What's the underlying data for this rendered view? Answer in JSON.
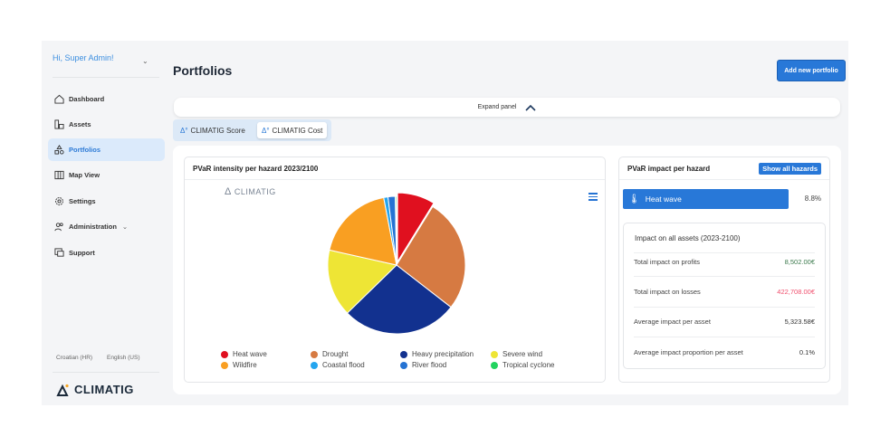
{
  "sidebar": {
    "greeting": "Hi, Super Admin!",
    "items": [
      {
        "label": "Dashboard",
        "icon": "home-icon"
      },
      {
        "label": "Assets",
        "icon": "assets-icon"
      },
      {
        "label": "Portfolios",
        "icon": "portfolios-icon",
        "active": true
      },
      {
        "label": "Map View",
        "icon": "map-icon"
      },
      {
        "label": "Settings",
        "icon": "gear-icon"
      },
      {
        "label": "Administration",
        "icon": "users-icon"
      },
      {
        "label": "Support",
        "icon": "support-icon"
      }
    ],
    "languages": [
      "Croatian (HR)",
      "English (US)"
    ],
    "logo": "CLIMATIG"
  },
  "header": {
    "title": "Portfolios",
    "add_button": "Add new portfolio",
    "expand_label": "Expand panel"
  },
  "tabs": [
    {
      "label": "CLIMATIG Score"
    },
    {
      "label": "CLIMATIG Cost",
      "selected": true
    }
  ],
  "pie_card": {
    "title": "PVaR intensity per hazard 2023/2100",
    "watermark": "CLIMATIG"
  },
  "chart_data": {
    "type": "pie",
    "title": "",
    "categories": [
      "Heat wave",
      "Drought",
      "Heavy precipitation",
      "Severe wind",
      "Wildfire",
      "Coastal flood",
      "River flood",
      "Tropical cyclone"
    ],
    "values": [
      8.8,
      26.7,
      27.2,
      15.8,
      18.5,
      1.0,
      1.7,
      0.3
    ],
    "colors": [
      "#e0101f",
      "#d67a42",
      "#12318f",
      "#eee535",
      "#f99f22",
      "#24a5ef",
      "#2573d3",
      "#22d35f"
    ],
    "legend_order": [
      0,
      1,
      2,
      3,
      4,
      5,
      6,
      7
    ],
    "legend": "bottom"
  },
  "impact_card": {
    "title": "PVaR impact per hazard",
    "show_all": "Show all hazards",
    "hazard": "Heat wave",
    "hazard_value": "8.8%",
    "summary_title": "Impact on all assets (2023-2100)",
    "rows": [
      {
        "label": "Total impact on profits",
        "value": "8,502.00€",
        "color": "#3c7a4d"
      },
      {
        "label": "Total impact on losses",
        "value": "422,708.00€",
        "color": "#f0506e"
      },
      {
        "label": "Average impact per asset",
        "value": "5,323.58€",
        "color": "#333333"
      },
      {
        "label": "Average impact proportion per asset",
        "value": "0.1%",
        "color": "#333333"
      }
    ]
  }
}
